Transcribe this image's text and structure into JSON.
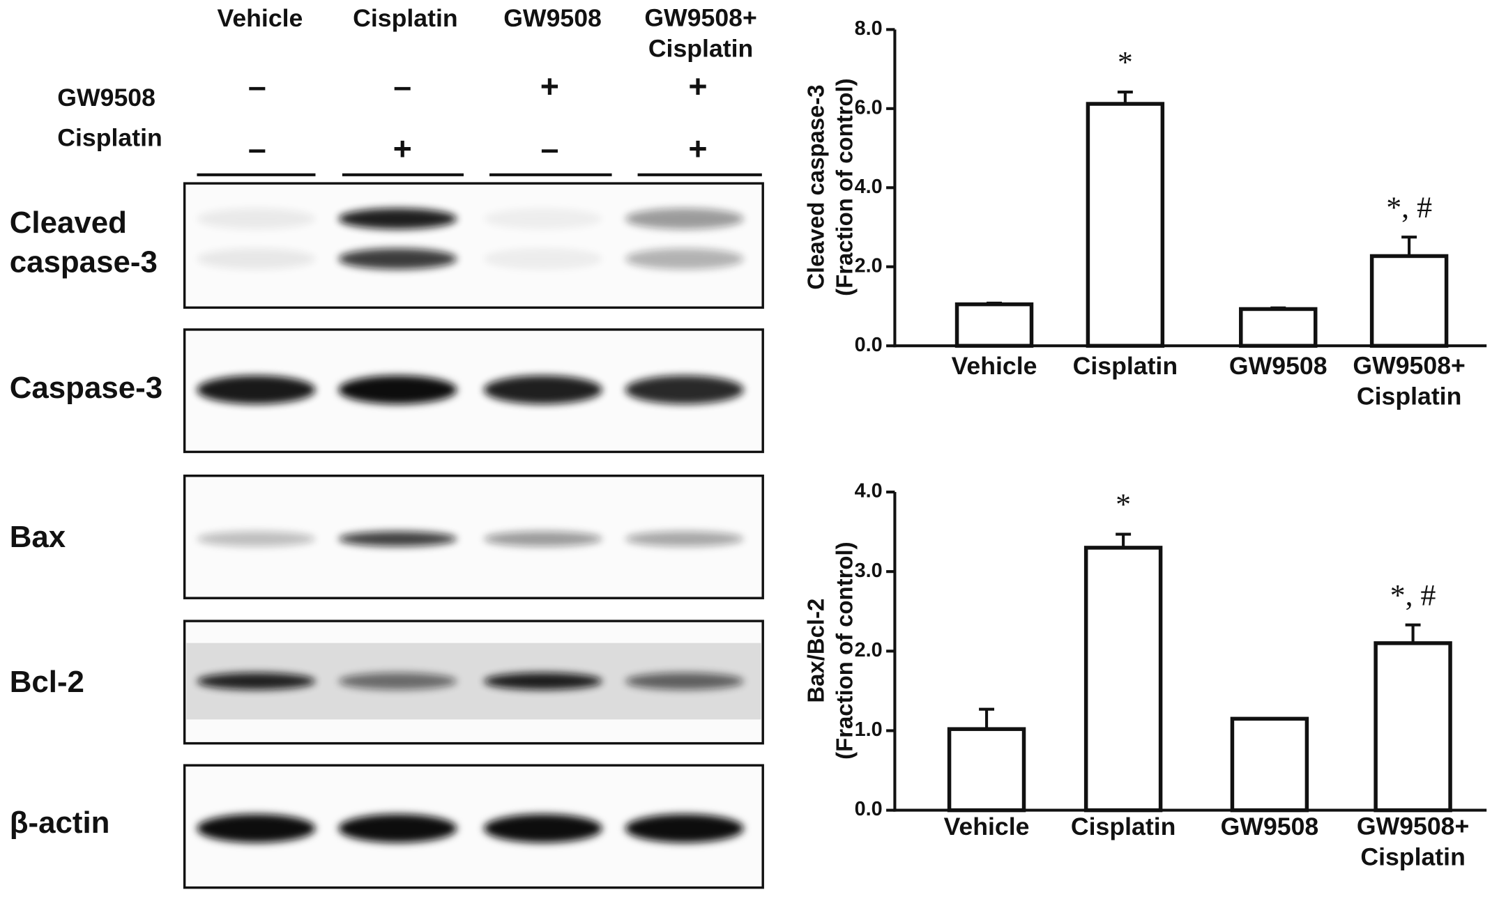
{
  "blot": {
    "lanes": [
      "Vehicle",
      "Cisplatin",
      "GW9508",
      "GW9508+\nCisplatin"
    ],
    "treatments": [
      {
        "name": "GW9508",
        "signs": [
          "–",
          "–",
          "+",
          "+"
        ]
      },
      {
        "name": "Cisplatin",
        "signs": [
          "–",
          "+",
          "–",
          "+"
        ]
      }
    ],
    "proteins": [
      "Cleaved\ncaspase-3",
      "Caspase-3",
      "Bax",
      "Bcl-2",
      "β-actin"
    ]
  },
  "chart_data": [
    {
      "type": "bar",
      "ylabel": "Cleaved caspase-3\n(Fraction of control)",
      "categories": [
        "Vehicle",
        "Cisplatin",
        "GW9508",
        "GW9508+\nCisplatin"
      ],
      "values": [
        1.05,
        6.12,
        0.93,
        2.27
      ],
      "errors": [
        0.03,
        0.3,
        0.03,
        0.48
      ],
      "color": "#ffffff",
      "ylim": [
        0,
        8
      ],
      "yticks": [
        {
          "value": 0,
          "label": "0.0"
        },
        {
          "value": 2,
          "label": "2.0"
        },
        {
          "value": 4,
          "label": "4.0"
        },
        {
          "value": 6,
          "label": "6.0"
        },
        {
          "value": 8,
          "label": "8.0"
        }
      ],
      "annotations": [
        {
          "text": "*",
          "category": "Cisplatin"
        },
        {
          "text": "*, #",
          "category": "GW9508+\nCisplatin"
        }
      ]
    },
    {
      "type": "bar",
      "ylabel": "Bax/Bcl-2\n(Fraction of control)",
      "categories": [
        "Vehicle",
        "Cisplatin",
        "GW9508",
        "GW9508+\nCisplatin"
      ],
      "values": [
        1.02,
        3.3,
        1.15,
        2.1
      ],
      "errors": [
        0.25,
        0.17,
        0,
        0.23
      ],
      "color": "#ffffff",
      "ylim": [
        0,
        4
      ],
      "yticks": [
        {
          "value": 0,
          "label": "0.0"
        },
        {
          "value": 1,
          "label": "1.0"
        },
        {
          "value": 2,
          "label": "2.0"
        },
        {
          "value": 3,
          "label": "3.0"
        },
        {
          "value": 4,
          "label": "4.0"
        }
      ],
      "annotations": [
        {
          "text": "*",
          "category": "Cisplatin"
        },
        {
          "text": "*, #",
          "category": "GW9508+\nCisplatin"
        }
      ]
    }
  ]
}
